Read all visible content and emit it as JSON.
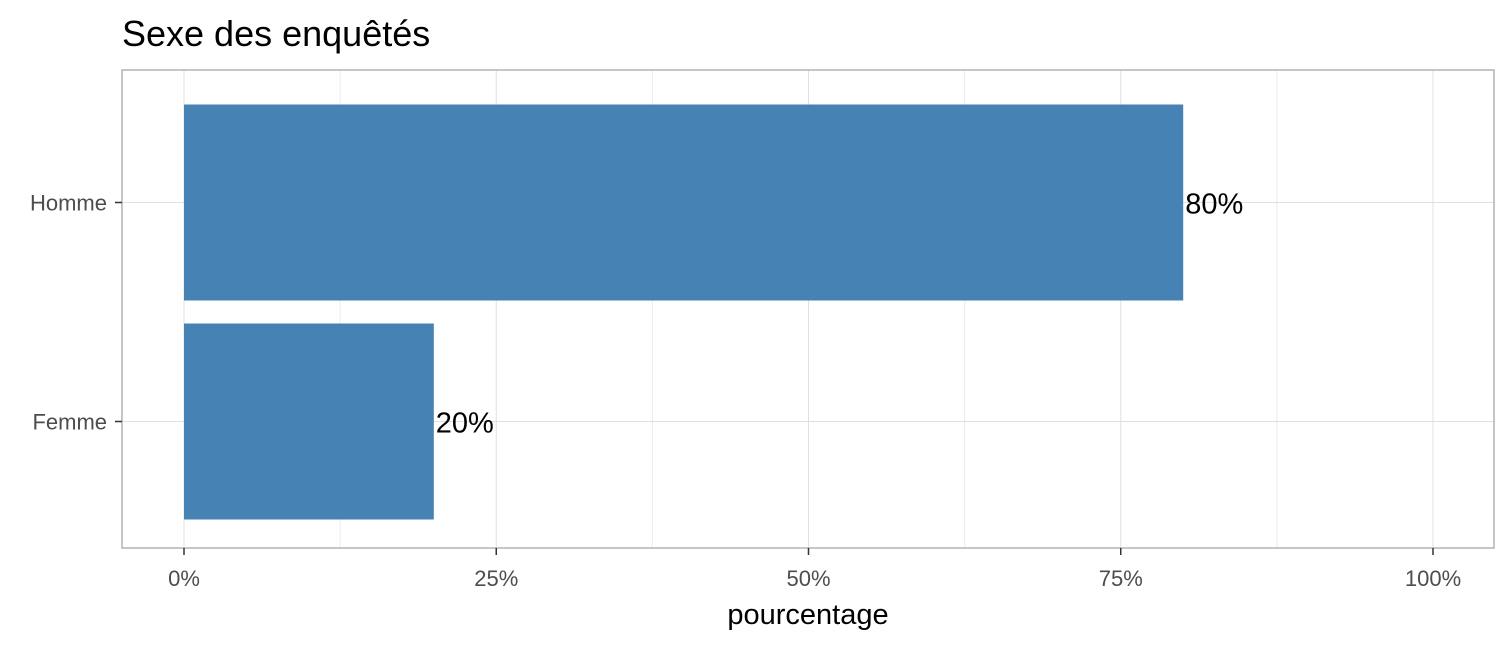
{
  "chart_data": {
    "type": "bar",
    "orientation": "horizontal",
    "title": "Sexe des enquêtés",
    "xlabel": "pourcentage",
    "ylabel": "",
    "categories": [
      "Homme",
      "Femme"
    ],
    "values": [
      80,
      20
    ],
    "data_labels": [
      "80%",
      "20%"
    ],
    "xlim": [
      0,
      100
    ],
    "x_ticks": [
      0,
      25,
      50,
      75,
      100
    ],
    "x_tick_labels": [
      "0%",
      "25%",
      "50%",
      "75%",
      "100%"
    ],
    "grid": true,
    "legend": "none",
    "colors": {
      "bar": "#4682B4",
      "panel_border": "#b3b3b3",
      "grid": "#e0e0e0"
    }
  }
}
